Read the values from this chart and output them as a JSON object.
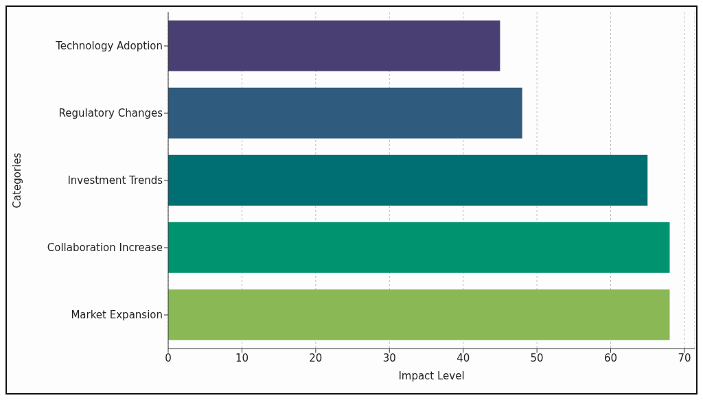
{
  "chart_data": {
    "type": "bar",
    "orientation": "horizontal",
    "xlabel": "Impact Level",
    "ylabel": "Categories",
    "categories": [
      "Technology Adoption",
      "Regulatory Changes",
      "Investment Trends",
      "Collaboration Increase",
      "Market Expansion"
    ],
    "values": [
      45,
      48,
      65,
      68,
      68
    ],
    "colors": [
      "#4a3f72",
      "#2f5b7e",
      "#006f73",
      "#00936f",
      "#89b854"
    ],
    "xlim": [
      0,
      71.4
    ],
    "xticks": [
      0,
      10,
      20,
      30,
      40,
      50,
      60,
      70
    ],
    "grid": "x"
  }
}
